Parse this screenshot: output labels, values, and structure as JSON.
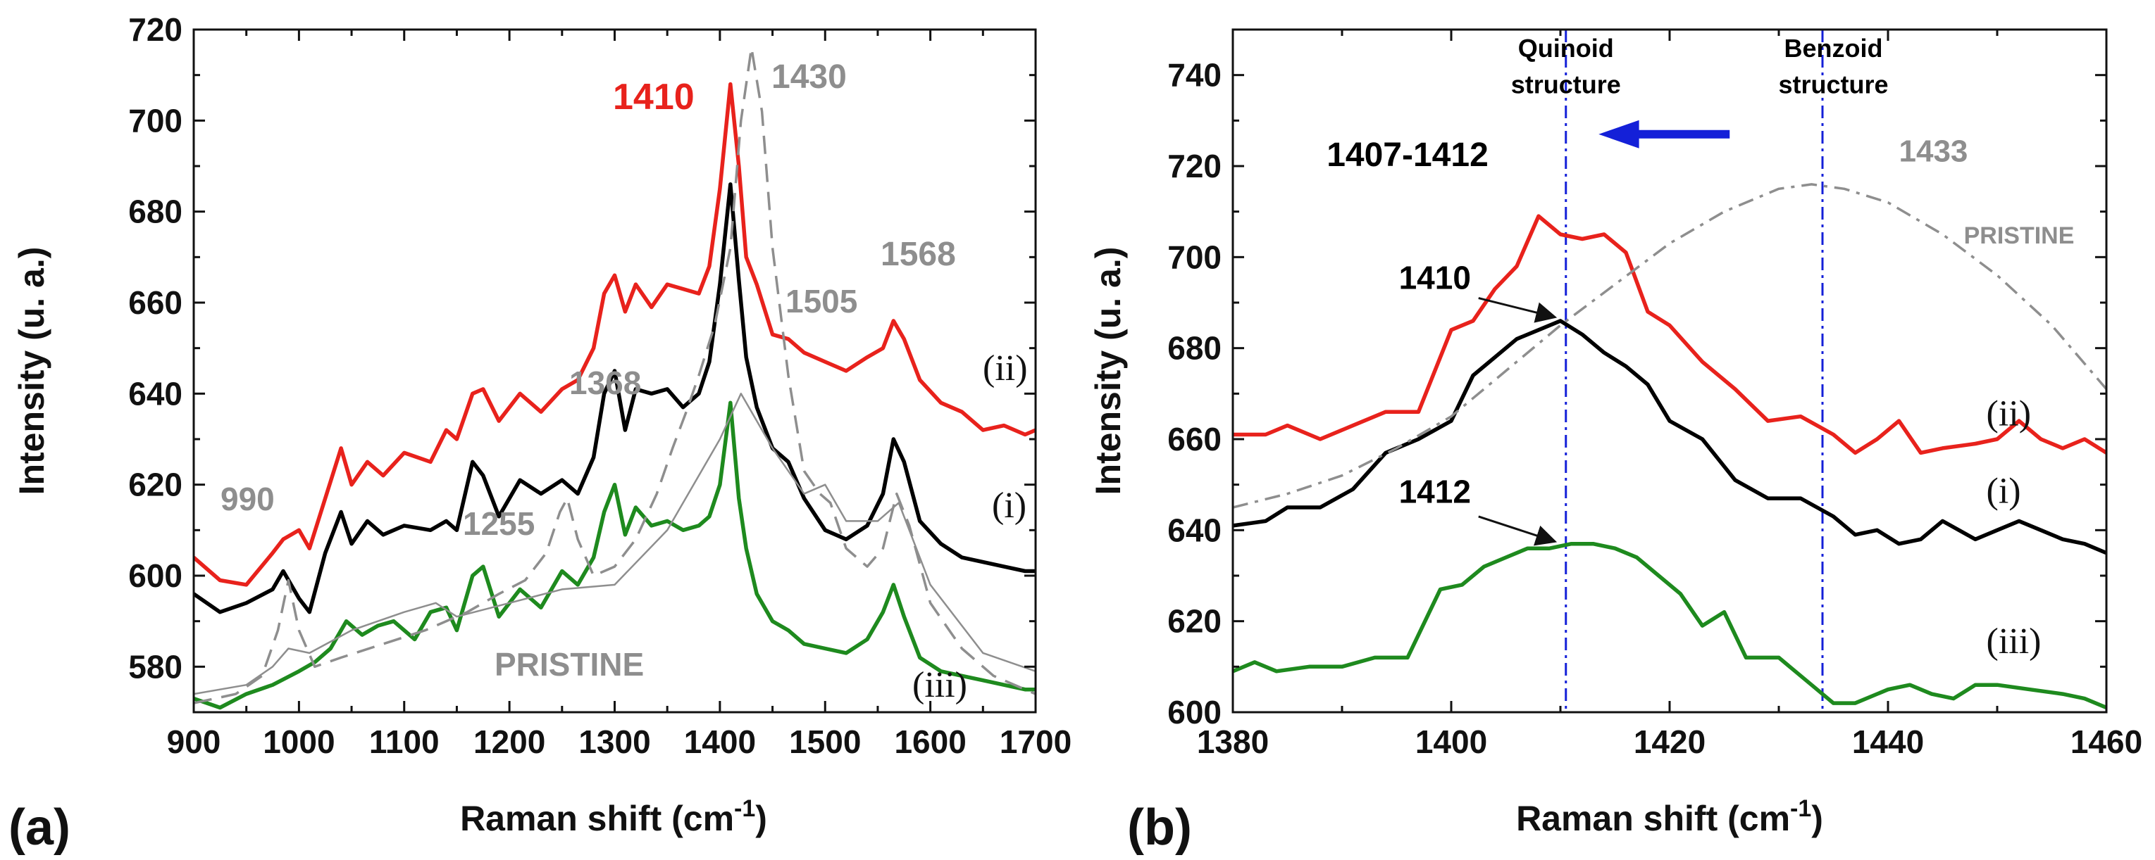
{
  "colors": {
    "red": "#e8221c",
    "black": "#000000",
    "green": "#1e8a1e",
    "gray": "#8e8e8e",
    "blue": "#1420d8"
  },
  "chart_data": [
    {
      "type": "line",
      "panel_label": "(a)",
      "xlabel_main": "Raman shift (cm",
      "xlabel_sup": "-1",
      "xlabel_end": ")",
      "ylabel": "Intensity (u. a.)",
      "xlim": [
        900,
        1700
      ],
      "ylim": [
        570,
        720
      ],
      "xticks": [
        900,
        1000,
        1100,
        1200,
        1300,
        1400,
        1500,
        1600,
        1700
      ],
      "yticks": [
        580,
        600,
        620,
        640,
        660,
        680,
        700,
        720
      ],
      "series": [
        {
          "name": "(ii)",
          "color": "red",
          "style": "solid",
          "x": [
            900,
            925,
            950,
            975,
            985,
            1000,
            1010,
            1025,
            1040,
            1050,
            1065,
            1080,
            1100,
            1125,
            1140,
            1150,
            1165,
            1175,
            1190,
            1210,
            1230,
            1250,
            1265,
            1280,
            1290,
            1300,
            1310,
            1320,
            1335,
            1350,
            1365,
            1380,
            1390,
            1400,
            1410,
            1418,
            1425,
            1435,
            1450,
            1465,
            1480,
            1500,
            1520,
            1540,
            1555,
            1565,
            1575,
            1590,
            1610,
            1630,
            1650,
            1670,
            1690,
            1700
          ],
          "y": [
            604,
            599,
            598,
            605,
            608,
            610,
            606,
            617,
            628,
            620,
            625,
            622,
            627,
            625,
            632,
            630,
            640,
            641,
            634,
            640,
            636,
            641,
            643,
            650,
            662,
            666,
            658,
            664,
            659,
            664,
            663,
            662,
            668,
            685,
            708,
            690,
            670,
            664,
            653,
            652,
            649,
            647,
            645,
            648,
            650,
            656,
            652,
            643,
            638,
            636,
            632,
            633,
            631,
            632
          ]
        },
        {
          "name": "(i)",
          "color": "black",
          "style": "solid",
          "x": [
            900,
            925,
            950,
            975,
            985,
            1000,
            1010,
            1025,
            1040,
            1050,
            1065,
            1080,
            1100,
            1125,
            1140,
            1150,
            1165,
            1175,
            1190,
            1210,
            1230,
            1250,
            1265,
            1280,
            1290,
            1300,
            1310,
            1320,
            1335,
            1350,
            1365,
            1380,
            1390,
            1400,
            1410,
            1418,
            1425,
            1435,
            1450,
            1465,
            1480,
            1500,
            1520,
            1540,
            1555,
            1565,
            1575,
            1590,
            1610,
            1630,
            1650,
            1670,
            1690,
            1700
          ],
          "y": [
            596,
            592,
            594,
            597,
            601,
            595,
            592,
            605,
            614,
            607,
            612,
            609,
            611,
            610,
            612,
            610,
            625,
            622,
            613,
            621,
            618,
            621,
            618,
            626,
            640,
            645,
            632,
            641,
            640,
            641,
            637,
            640,
            647,
            664,
            686,
            665,
            648,
            637,
            628,
            625,
            617,
            610,
            608,
            611,
            618,
            630,
            625,
            612,
            607,
            604,
            603,
            602,
            601,
            601
          ]
        },
        {
          "name": "(iii)",
          "color": "green",
          "style": "solid",
          "x": [
            900,
            925,
            950,
            975,
            1000,
            1015,
            1030,
            1045,
            1060,
            1075,
            1090,
            1110,
            1125,
            1140,
            1150,
            1165,
            1175,
            1190,
            1210,
            1230,
            1250,
            1265,
            1280,
            1290,
            1300,
            1310,
            1320,
            1335,
            1350,
            1365,
            1380,
            1390,
            1400,
            1410,
            1418,
            1425,
            1435,
            1450,
            1465,
            1480,
            1500,
            1520,
            1540,
            1555,
            1565,
            1575,
            1590,
            1610,
            1630,
            1650,
            1670,
            1690,
            1700
          ],
          "y": [
            573,
            571,
            574,
            576,
            579,
            581,
            584,
            590,
            587,
            589,
            590,
            586,
            592,
            593,
            588,
            600,
            602,
            591,
            597,
            593,
            601,
            598,
            604,
            614,
            620,
            609,
            615,
            611,
            612,
            610,
            611,
            613,
            620,
            638,
            617,
            606,
            596,
            590,
            588,
            585,
            584,
            583,
            586,
            592,
            598,
            591,
            582,
            579,
            578,
            577,
            576,
            575,
            575
          ]
        },
        {
          "name": "PRISTINE dashed",
          "color": "gray",
          "style": "dashed",
          "x": [
            900,
            940,
            965,
            980,
            990,
            1000,
            1015,
            1040,
            1080,
            1120,
            1160,
            1190,
            1215,
            1235,
            1248,
            1255,
            1265,
            1280,
            1300,
            1320,
            1340,
            1355,
            1368,
            1380,
            1395,
            1410,
            1420,
            1430,
            1440,
            1450,
            1465,
            1480,
            1495,
            1505,
            1520,
            1540,
            1555,
            1568,
            1580,
            1600,
            1630,
            1660,
            1700
          ],
          "y": [
            572,
            574,
            578,
            588,
            599,
            588,
            580,
            582,
            585,
            588,
            592,
            596,
            599,
            605,
            614,
            617,
            608,
            600,
            602,
            608,
            618,
            628,
            636,
            644,
            655,
            672,
            700,
            716,
            702,
            672,
            644,
            623,
            618,
            616,
            606,
            602,
            606,
            618,
            611,
            594,
            584,
            578,
            574
          ]
        },
        {
          "name": "PRISTINE thin",
          "color": "gray",
          "style": "thin",
          "x": [
            900,
            950,
            975,
            990,
            1010,
            1050,
            1100,
            1130,
            1150,
            1200,
            1250,
            1300,
            1350,
            1400,
            1420,
            1450,
            1480,
            1500,
            1520,
            1550,
            1570,
            1600,
            1650,
            1700
          ],
          "y": [
            574,
            576,
            580,
            584,
            583,
            588,
            592,
            594,
            591,
            594,
            597,
            598,
            610,
            630,
            640,
            628,
            618,
            620,
            612,
            612,
            616,
            598,
            583,
            579
          ]
        }
      ],
      "annotations": [
        {
          "text": "1410",
          "color": "red",
          "x": 1407,
          "y": 707
        },
        {
          "text": "1430",
          "color": "gray",
          "x": 1458,
          "y": 709
        },
        {
          "text": "1568",
          "color": "gray",
          "x": 1570,
          "y": 664
        },
        {
          "text": "1505",
          "color": "gray",
          "x": 1497,
          "y": 657
        },
        {
          "text": "1368",
          "color": "gray",
          "x": 1351,
          "y": 628
        },
        {
          "text": "990",
          "color": "gray",
          "x": 967,
          "y": 615
        },
        {
          "text": "1255",
          "color": "gray",
          "x": 1220,
          "y": 604
        },
        {
          "text": "PRISTINE",
          "color": "gray",
          "x": 1274,
          "y": 577
        },
        {
          "text": "(ii)",
          "color": "black",
          "x": 1644,
          "y": 636
        },
        {
          "text": "(i)",
          "color": "black",
          "x": 1646,
          "y": 611
        },
        {
          "text": "(iii)",
          "color": "black",
          "x": 1583,
          "y": 573
        }
      ]
    },
    {
      "type": "line",
      "panel_label": "(b)",
      "xlabel_main": "Raman shift (cm",
      "xlabel_sup": "-1",
      "xlabel_end": ")",
      "ylabel": "Intensity (u. a.)",
      "xlim": [
        1380,
        1460
      ],
      "ylim": [
        600,
        750
      ],
      "xticks": [
        1380,
        1400,
        1420,
        1440,
        1460
      ],
      "yticks": [
        600,
        620,
        640,
        660,
        680,
        700,
        720,
        740
      ],
      "series": [
        {
          "name": "(ii)",
          "color": "red",
          "style": "solid",
          "x": [
            1380,
            1383,
            1385,
            1388,
            1391,
            1394,
            1397,
            1400,
            1402,
            1404,
            1406,
            1408,
            1410,
            1412,
            1414,
            1416,
            1418,
            1420,
            1423,
            1426,
            1429,
            1432,
            1435,
            1437,
            1439,
            1441,
            1443,
            1445,
            1448,
            1450,
            1452,
            1454,
            1456,
            1458,
            1460
          ],
          "y": [
            661,
            661,
            663,
            660,
            663,
            666,
            666,
            684,
            686,
            693,
            698,
            709,
            705,
            704,
            705,
            701,
            688,
            685,
            677,
            671,
            664,
            665,
            661,
            657,
            660,
            664,
            657,
            658,
            659,
            660,
            664,
            660,
            658,
            660,
            657
          ]
        },
        {
          "name": "(i)",
          "color": "black",
          "style": "solid",
          "x": [
            1380,
            1383,
            1385,
            1388,
            1391,
            1394,
            1397,
            1400,
            1402,
            1404,
            1406,
            1408,
            1410,
            1412,
            1414,
            1416,
            1418,
            1420,
            1423,
            1426,
            1429,
            1432,
            1435,
            1437,
            1439,
            1441,
            1443,
            1445,
            1448,
            1450,
            1452,
            1454,
            1456,
            1458,
            1460
          ],
          "y": [
            641,
            642,
            645,
            645,
            649,
            657,
            660,
            664,
            674,
            678,
            682,
            684,
            686,
            683,
            679,
            676,
            672,
            664,
            660,
            651,
            647,
            647,
            643,
            639,
            640,
            637,
            638,
            642,
            638,
            640,
            642,
            640,
            638,
            637,
            635
          ]
        },
        {
          "name": "(iii)",
          "color": "green",
          "style": "solid",
          "x": [
            1380,
            1382,
            1384,
            1387,
            1390,
            1393,
            1396,
            1399,
            1401,
            1403,
            1405,
            1407,
            1409,
            1411,
            1413,
            1415,
            1417,
            1419,
            1421,
            1423,
            1425,
            1427,
            1430,
            1433,
            1435,
            1437,
            1440,
            1442,
            1444,
            1446,
            1448,
            1450,
            1453,
            1456,
            1458,
            1460
          ],
          "y": [
            609,
            611,
            609,
            610,
            610,
            612,
            612,
            627,
            628,
            632,
            634,
            636,
            636,
            637,
            637,
            636,
            634,
            630,
            626,
            619,
            622,
            612,
            612,
            606,
            602,
            602,
            605,
            606,
            604,
            603,
            606,
            606,
            605,
            604,
            603,
            601
          ]
        },
        {
          "name": "PRISTINE",
          "color": "gray",
          "style": "dashdot",
          "x": [
            1380,
            1385,
            1390,
            1395,
            1400,
            1405,
            1410,
            1415,
            1420,
            1425,
            1430,
            1433,
            1436,
            1440,
            1445,
            1450,
            1455,
            1460
          ],
          "y": [
            645,
            648,
            652,
            658,
            665,
            675,
            685,
            694,
            703,
            710,
            715,
            716,
            715,
            712,
            705,
            696,
            685,
            671
          ]
        }
      ],
      "vlines": [
        1410.5,
        1434
      ],
      "annotations": [
        {
          "text": "Quinoid",
          "color": "black",
          "x": 1410.5,
          "y": 744
        },
        {
          "text": "structure",
          "color": "black",
          "x": 1410.5,
          "y": 736
        },
        {
          "text": "Benzoid",
          "color": "black",
          "x": 1435,
          "y": 744
        },
        {
          "text": "structure",
          "color": "black",
          "x": 1435,
          "y": 736
        },
        {
          "text": "1407-1412",
          "color": "black",
          "x": 1396,
          "y": 720
        },
        {
          "text": "1433",
          "color": "gray",
          "x": 1441,
          "y": 721
        },
        {
          "text": "PRISTINE",
          "color": "gray",
          "x": 1452,
          "y": 703
        },
        {
          "text": "1410",
          "color": "black",
          "x": 1398.5,
          "y": 693
        },
        {
          "text": "1412",
          "color": "black",
          "x": 1398.5,
          "y": 646
        },
        {
          "text": "(ii)",
          "color": "black",
          "x": 1449,
          "y": 663
        },
        {
          "text": "(i)",
          "color": "black",
          "x": 1449,
          "y": 646
        },
        {
          "text": "(iii)",
          "color": "black",
          "x": 1449,
          "y": 613
        }
      ]
    }
  ]
}
